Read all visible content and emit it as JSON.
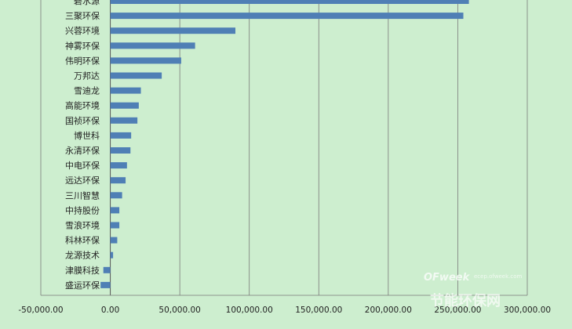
{
  "colors": {
    "background": "#cdeecf",
    "bar": "#4f7fb5",
    "gridline": "#7a7a7a",
    "axis": "#555555"
  },
  "watermark": {
    "brand": "OFweek",
    "url": "ecep.ofweek.com",
    "title": "节能环保网"
  },
  "chart_data": {
    "type": "bar",
    "orientation": "horizontal",
    "categories": [
      "碧水源",
      "三聚环保",
      "兴蓉环境",
      "神雾环保",
      "伟明环保",
      "万邦达",
      "雪迪龙",
      "高能环境",
      "国祯环保",
      "博世科",
      "永清环保",
      "中电环保",
      "远达环保",
      "三川智慧",
      "中持股份",
      "雪浪环境",
      "科林环保",
      "龙源技术",
      "津膜科技",
      "盛运环保"
    ],
    "values": [
      258000,
      254000,
      90000,
      61000,
      51000,
      37000,
      22000,
      20500,
      19500,
      15000,
      14500,
      12000,
      11000,
      8500,
      6500,
      6500,
      5000,
      2000,
      -5000,
      -7000
    ],
    "xlim": [
      -50000,
      300000
    ],
    "tick_values": [
      -50000,
      0,
      50000,
      100000,
      150000,
      200000,
      250000,
      300000
    ],
    "tick_labels": [
      "-50,000.00",
      "0.00",
      "50,000.00",
      "100,000.00",
      "150,000.00",
      "200,000.00",
      "250,000.00",
      "300,000.00"
    ],
    "grid": true,
    "title": "",
    "xlabel": "",
    "ylabel": ""
  }
}
